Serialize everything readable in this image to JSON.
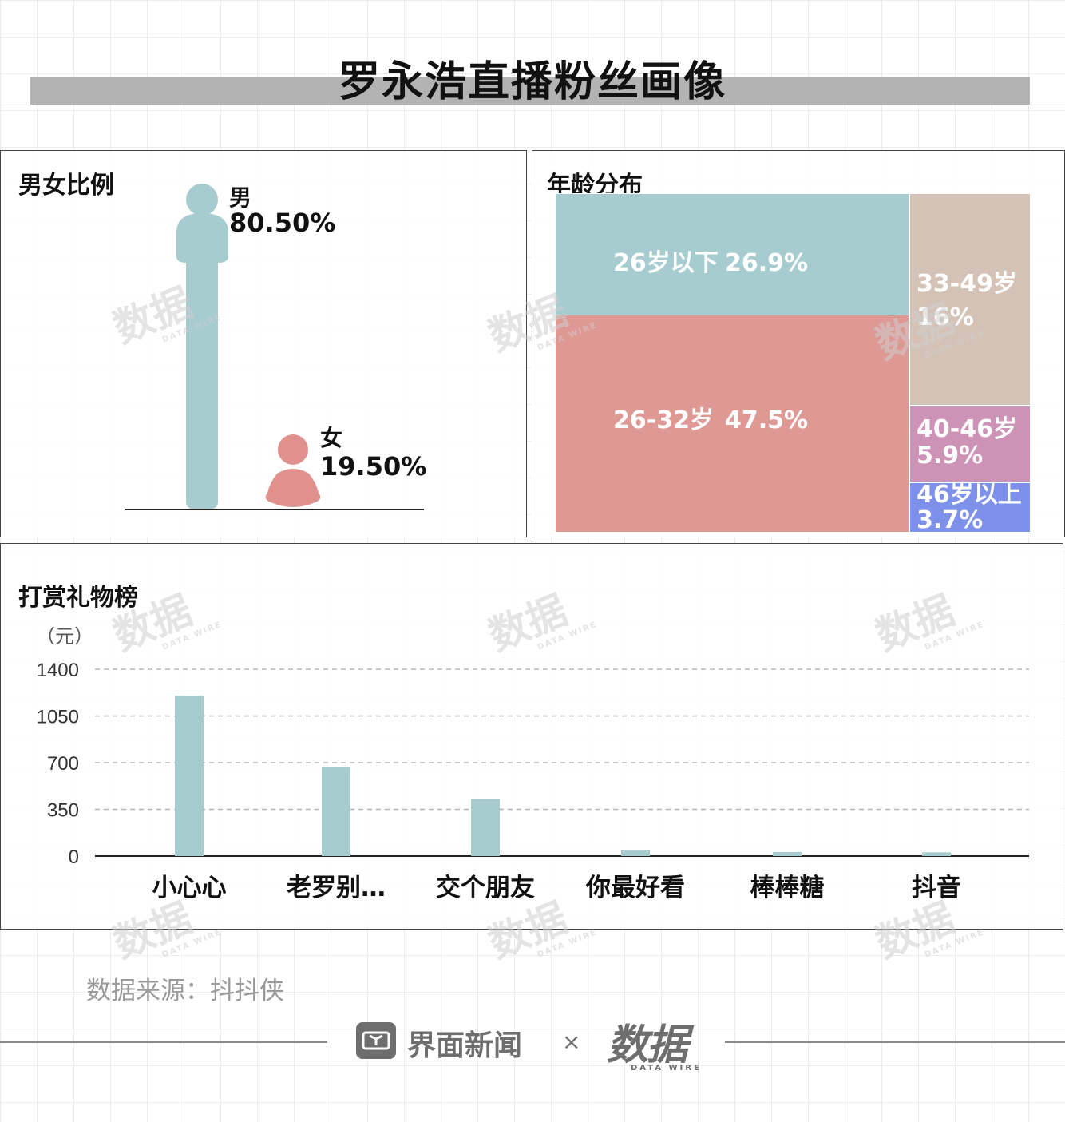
{
  "title": "罗永浩直播粉丝画像",
  "gender": {
    "panel_title": "男女比例",
    "male": {
      "label": "男",
      "value_text": "80.50%",
      "value": 80.5,
      "color": "#a7cccf"
    },
    "female": {
      "label": "女",
      "value_text": "19.50%",
      "value": 19.5,
      "color": "#e0918d"
    }
  },
  "age": {
    "panel_title": "年龄分布",
    "segments": [
      {
        "name": "26岁以下",
        "value_text": "26.9%",
        "value": 26.9,
        "color": "#a7cccf"
      },
      {
        "name": "26-32岁",
        "value_text": "47.5%",
        "value": 47.5,
        "color": "#df9995"
      },
      {
        "name": "33-49岁",
        "value_text": "16%",
        "value": 16,
        "color": "#d5c2b6"
      },
      {
        "name": "40-46岁",
        "value_text": "5.9%",
        "value": 5.9,
        "color": "#cd93b6"
      },
      {
        "name": "46岁以上",
        "value_text": "3.7%",
        "value": 3.7,
        "color": "#7d91ea"
      }
    ]
  },
  "gifts": {
    "panel_title": "打赏礼物榜",
    "unit": "（元）"
  },
  "chart_data": {
    "type": "bar",
    "categories": [
      "小心心",
      "老罗别…",
      "交个朋友",
      "你最好看",
      "棒棒糖",
      "抖音"
    ],
    "values": [
      1200,
      670,
      430,
      45,
      30,
      28
    ],
    "ylim": [
      0,
      1400
    ],
    "yticks": [
      0,
      350,
      700,
      1050,
      1400
    ],
    "ylabel": "（元）",
    "grid": true,
    "color": "#a7cccf"
  },
  "watermark": {
    "text": "数据",
    "sub": "DATA WIRE"
  },
  "footer": {
    "source": "数据来源：抖抖侠",
    "brand_left": "界面新闻",
    "times": "×",
    "brand_right": "数据",
    "brand_right_sub": "DATA WIRE"
  }
}
